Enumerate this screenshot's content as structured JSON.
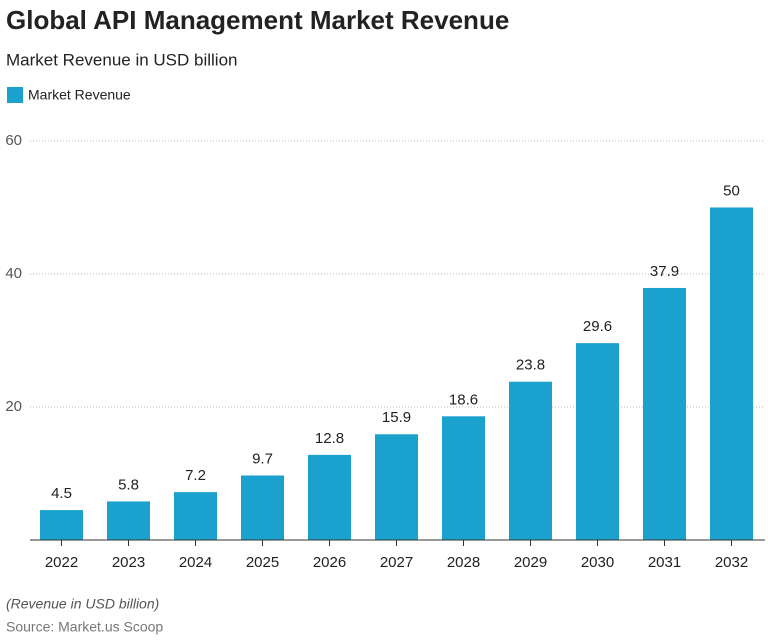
{
  "chart_data": {
    "type": "bar",
    "title": "Global API Management Market Revenue",
    "subtitle": "Market Revenue in USD billion",
    "categories": [
      "2022",
      "2023",
      "2024",
      "2025",
      "2026",
      "2027",
      "2028",
      "2029",
      "2030",
      "2031",
      "2032"
    ],
    "series": [
      {
        "name": "Market Revenue",
        "color": "#1aa1cd",
        "values": [
          4.5,
          5.8,
          7.2,
          9.7,
          12.8,
          15.9,
          18.6,
          23.8,
          29.6,
          37.9,
          50
        ]
      }
    ],
    "ylim": [
      0,
      60
    ],
    "yticks": [
      20,
      40,
      60
    ],
    "grid": true,
    "legend": "top-left",
    "note": "(Revenue in USD billion)",
    "source": "Source: Market.us Scoop"
  }
}
